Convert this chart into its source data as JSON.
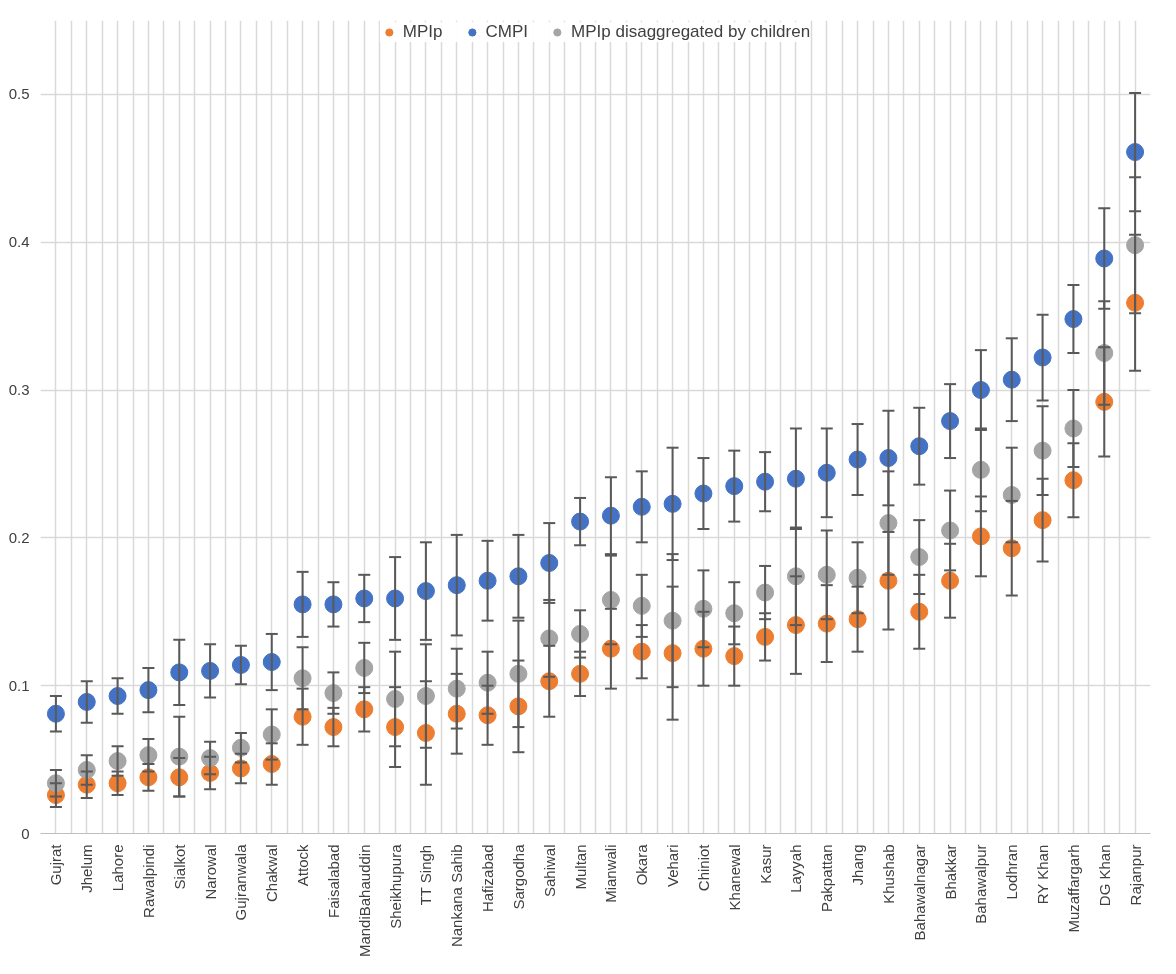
{
  "chart_data": {
    "type": "scatter",
    "categories": [
      "Gujrat",
      "Jhelum",
      "Lahore",
      "Rawalpindi",
      "Sialkot",
      "Narowal",
      "Gujranwala",
      "Chakwal",
      "Attock",
      "Faisalabad",
      "MandiBahauddin",
      "Sheikhupura",
      "TT Singh",
      "Nankana Sahib",
      "Hafizabad",
      "Sargodha",
      "Sahiwal",
      "Multan",
      "Mianwali",
      "Okara",
      "Vehari",
      "Chiniot",
      "Khanewal",
      "Kasur",
      "Layyah",
      "Pakpattan",
      "Jhang",
      "Khushab",
      "Bahawalnagar",
      "Bhakkar",
      "Bahawalpur",
      "Lodhran",
      "RY Khan",
      "Muzaffargarh",
      "DG Khan",
      "Rajanpur"
    ],
    "series": [
      {
        "name": "MPIp",
        "color": "#ed7d31",
        "values": [
          0.026,
          0.033,
          0.034,
          0.038,
          0.038,
          0.041,
          0.044,
          0.047,
          0.079,
          0.072,
          0.084,
          0.072,
          0.068,
          0.081,
          0.08,
          0.086,
          0.103,
          0.108,
          0.125,
          0.123,
          0.122,
          0.125,
          0.12,
          0.133,
          0.141,
          0.142,
          0.145,
          0.171,
          0.15,
          0.171,
          0.201,
          0.193,
          0.212,
          0.239,
          0.292,
          0.359
        ],
        "errors": [
          0.008,
          0.009,
          0.008,
          0.009,
          0.013,
          0.011,
          0.01,
          0.014,
          0.019,
          0.013,
          0.015,
          0.027,
          0.035,
          0.027,
          0.02,
          0.031,
          0.024,
          0.015,
          0.027,
          0.018,
          0.045,
          0.025,
          0.02,
          0.016,
          0.033,
          0.026,
          0.022,
          0.033,
          0.025,
          0.025,
          0.027,
          0.032,
          0.028,
          0.025,
          0.037,
          0.046
        ]
      },
      {
        "name": "CMPI",
        "color": "#4472c4",
        "values": [
          0.081,
          0.089,
          0.093,
          0.097,
          0.109,
          0.11,
          0.114,
          0.116,
          0.155,
          0.155,
          0.159,
          0.159,
          0.164,
          0.168,
          0.171,
          0.174,
          0.183,
          0.211,
          0.215,
          0.221,
          0.223,
          0.23,
          0.235,
          0.238,
          0.24,
          0.244,
          0.253,
          0.254,
          0.262,
          0.279,
          0.3,
          0.307,
          0.322,
          0.348,
          0.389,
          0.461
        ],
        "errors": [
          0.012,
          0.014,
          0.012,
          0.015,
          0.022,
          0.018,
          0.013,
          0.019,
          0.022,
          0.015,
          0.016,
          0.028,
          0.033,
          0.034,
          0.027,
          0.028,
          0.027,
          0.016,
          0.026,
          0.024,
          0.038,
          0.024,
          0.024,
          0.02,
          0.034,
          0.03,
          0.024,
          0.032,
          0.026,
          0.025,
          0.027,
          0.028,
          0.029,
          0.023,
          0.034,
          0.04
        ]
      },
      {
        "name": "MPIp disaggregated by children",
        "color": "#a5a5a5",
        "values": [
          0.034,
          0.043,
          0.049,
          0.053,
          0.052,
          0.051,
          0.058,
          0.067,
          0.105,
          0.095,
          0.112,
          0.091,
          0.093,
          0.098,
          0.102,
          0.108,
          0.132,
          0.135,
          0.158,
          0.154,
          0.144,
          0.152,
          0.149,
          0.163,
          0.174,
          0.175,
          0.173,
          0.21,
          0.187,
          0.205,
          0.246,
          0.229,
          0.259,
          0.274,
          0.325,
          0.398
        ],
        "errors": [
          0.009,
          0.01,
          0.01,
          0.011,
          0.027,
          0.011,
          0.01,
          0.017,
          0.021,
          0.014,
          0.017,
          0.032,
          0.035,
          0.027,
          0.021,
          0.036,
          0.026,
          0.016,
          0.03,
          0.021,
          0.045,
          0.026,
          0.021,
          0.018,
          0.033,
          0.03,
          0.024,
          0.035,
          0.025,
          0.027,
          0.028,
          0.032,
          0.03,
          0.026,
          0.035,
          0.046
        ]
      }
    ],
    "ylim": [
      0,
      0.55
    ],
    "yticks": [
      0,
      0.1,
      0.2,
      0.3,
      0.4,
      0.5
    ],
    "grid": true,
    "legend": "top",
    "marker": "circle"
  }
}
